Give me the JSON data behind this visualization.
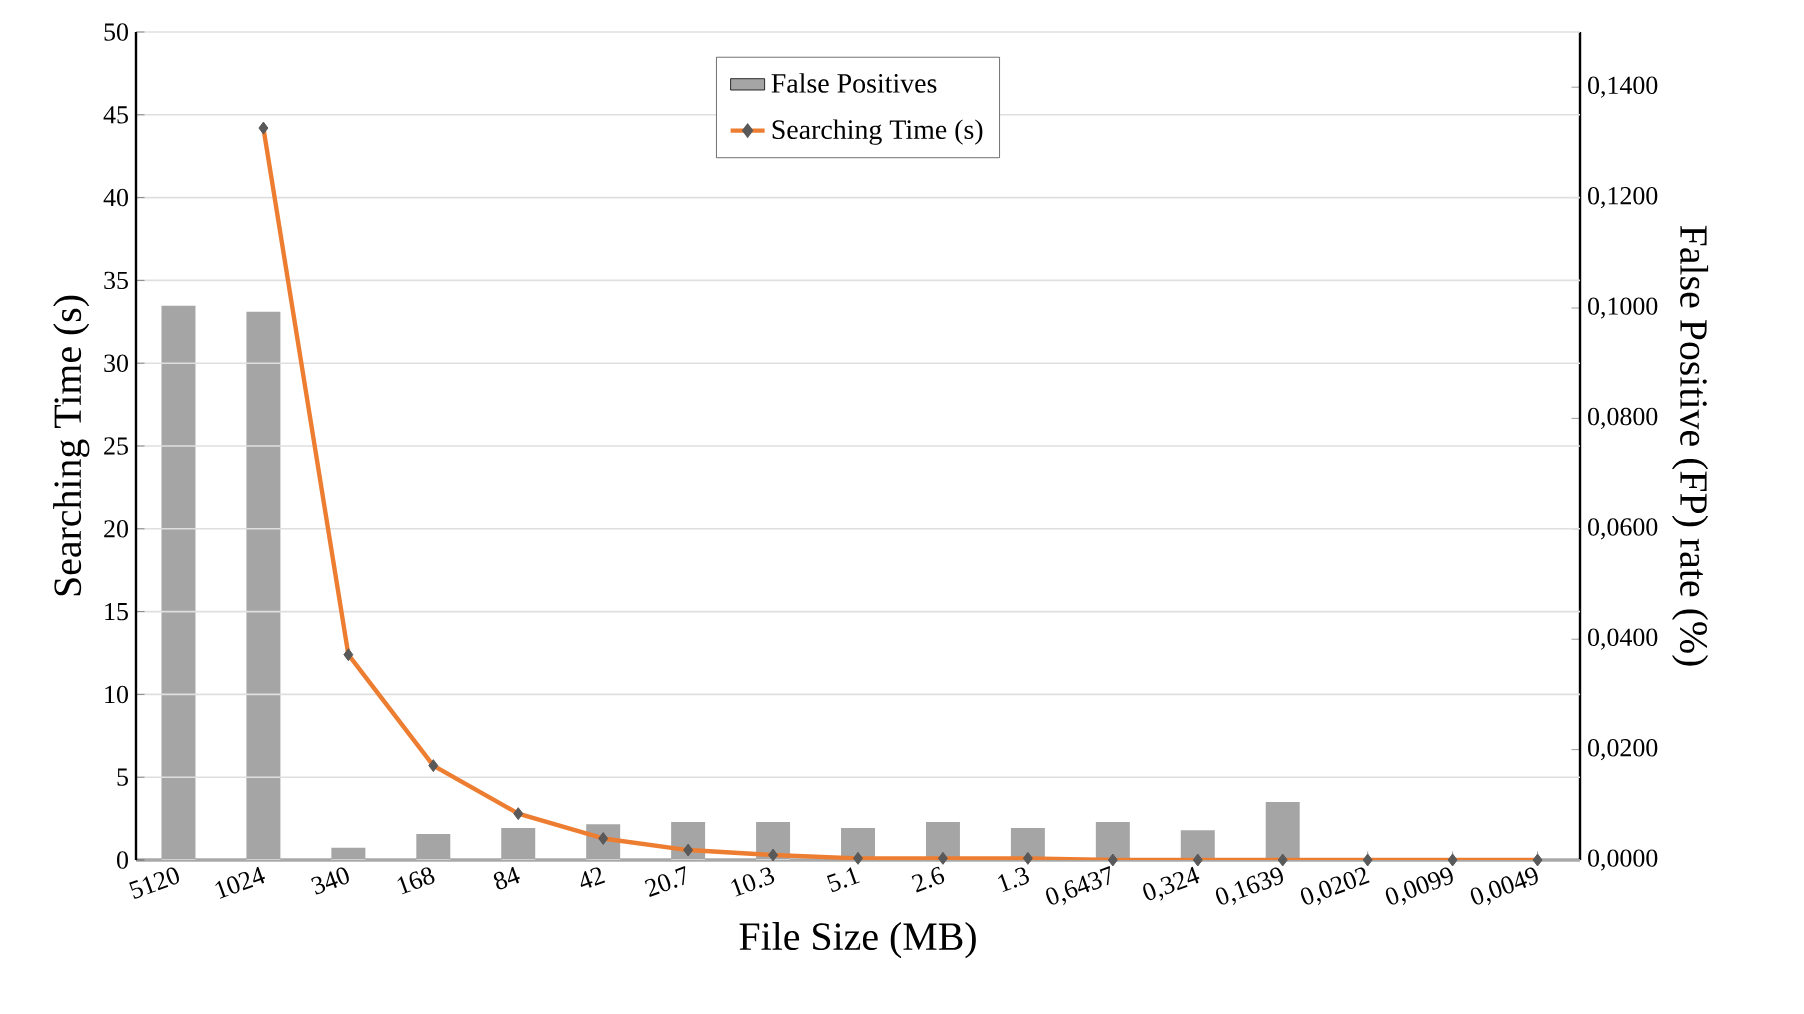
{
  "chart_data": {
    "type": "bar",
    "xlabel": "File Size (MB)",
    "ylabel": "Searching Time (s)",
    "y2label": "False Positive (FP) rate (%)",
    "categories": [
      "5120",
      "1024",
      "340",
      "168",
      "84",
      "42",
      "20.7",
      "10.3",
      "5.1",
      "2.6",
      "1.3",
      "0,6437",
      "0,324",
      "0,1639",
      "0,0202",
      "0,0099",
      "0,0049"
    ],
    "series": [
      {
        "name": "False Positives",
        "axis": "y2",
        "color": "#a5a5a5",
        "values": [
          0.1004,
          0.0993,
          0.0022,
          0.0047,
          0.0058,
          0.0065,
          0.0069,
          0.0069,
          0.0058,
          0.0069,
          0.0058,
          0.0069,
          0.0054,
          0.0105,
          0,
          0,
          0
        ]
      },
      {
        "name": "Searching Time (s)",
        "type": "line",
        "axis": "y",
        "color": "#ed7d31",
        "marker": "diamond",
        "values": [
          null,
          44.2,
          12.4,
          5.7,
          2.8,
          1.3,
          0.6,
          0.3,
          0.1,
          0.1,
          0.1,
          0,
          0,
          0,
          0,
          0,
          0
        ]
      }
    ],
    "ylim": [
      0,
      50
    ],
    "yticks": [
      0,
      5,
      10,
      15,
      20,
      25,
      30,
      35,
      40,
      45,
      50
    ],
    "y2lim": [
      0,
      0.15
    ],
    "y2ticks": [
      {
        "value": 0,
        "label": "0,0000"
      },
      {
        "value": 0.02,
        "label": "0,0200"
      },
      {
        "value": 0.04,
        "label": "0,0400"
      },
      {
        "value": 0.06,
        "label": "0,0600"
      },
      {
        "value": 0.08,
        "label": "0,0800"
      },
      {
        "value": 0.1,
        "label": "0,1000"
      },
      {
        "value": 0.12,
        "label": "0,1200"
      },
      {
        "value": 0.14,
        "label": "0,1400"
      }
    ],
    "grid": "y",
    "legend": "top"
  }
}
